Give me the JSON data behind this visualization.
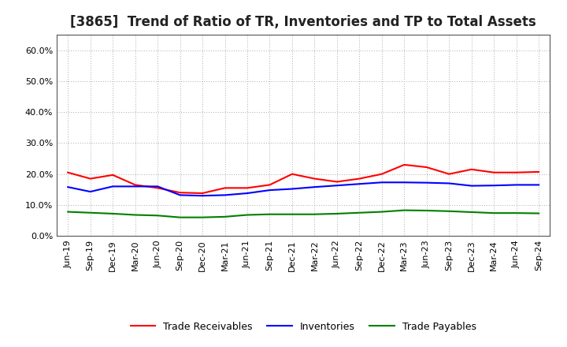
{
  "title": "[3865]  Trend of Ratio of TR, Inventories and TP to Total Assets",
  "labels": [
    "Jun-19",
    "Sep-19",
    "Dec-19",
    "Mar-20",
    "Jun-20",
    "Sep-20",
    "Dec-20",
    "Mar-21",
    "Jun-21",
    "Sep-21",
    "Dec-21",
    "Mar-22",
    "Jun-22",
    "Sep-22",
    "Dec-22",
    "Mar-23",
    "Jun-23",
    "Sep-23",
    "Dec-23",
    "Mar-24",
    "Jun-24",
    "Sep-24"
  ],
  "trade_receivables": [
    0.205,
    0.185,
    0.197,
    0.165,
    0.155,
    0.14,
    0.138,
    0.155,
    0.155,
    0.165,
    0.2,
    0.185,
    0.175,
    0.185,
    0.2,
    0.23,
    0.222,
    0.2,
    0.215,
    0.205,
    0.205,
    0.207
  ],
  "inventories": [
    0.158,
    0.143,
    0.16,
    0.16,
    0.16,
    0.132,
    0.13,
    0.132,
    0.138,
    0.148,
    0.152,
    0.158,
    0.163,
    0.168,
    0.173,
    0.173,
    0.172,
    0.17,
    0.162,
    0.163,
    0.165,
    0.165
  ],
  "trade_payables": [
    0.078,
    0.075,
    0.072,
    0.068,
    0.066,
    0.06,
    0.06,
    0.062,
    0.068,
    0.07,
    0.07,
    0.07,
    0.072,
    0.075,
    0.078,
    0.083,
    0.082,
    0.08,
    0.077,
    0.074,
    0.074,
    0.073
  ],
  "tr_color": "#ff0000",
  "inv_color": "#0000ff",
  "tp_color": "#008000",
  "ylim": [
    0.0,
    0.65
  ],
  "yticks": [
    0.0,
    0.1,
    0.2,
    0.3,
    0.4,
    0.5,
    0.6
  ],
  "background_color": "#ffffff",
  "grid_color": "#aaaaaa",
  "legend_labels": [
    "Trade Receivables",
    "Inventories",
    "Trade Payables"
  ],
  "title_fontsize": 12,
  "tick_fontsize": 8
}
